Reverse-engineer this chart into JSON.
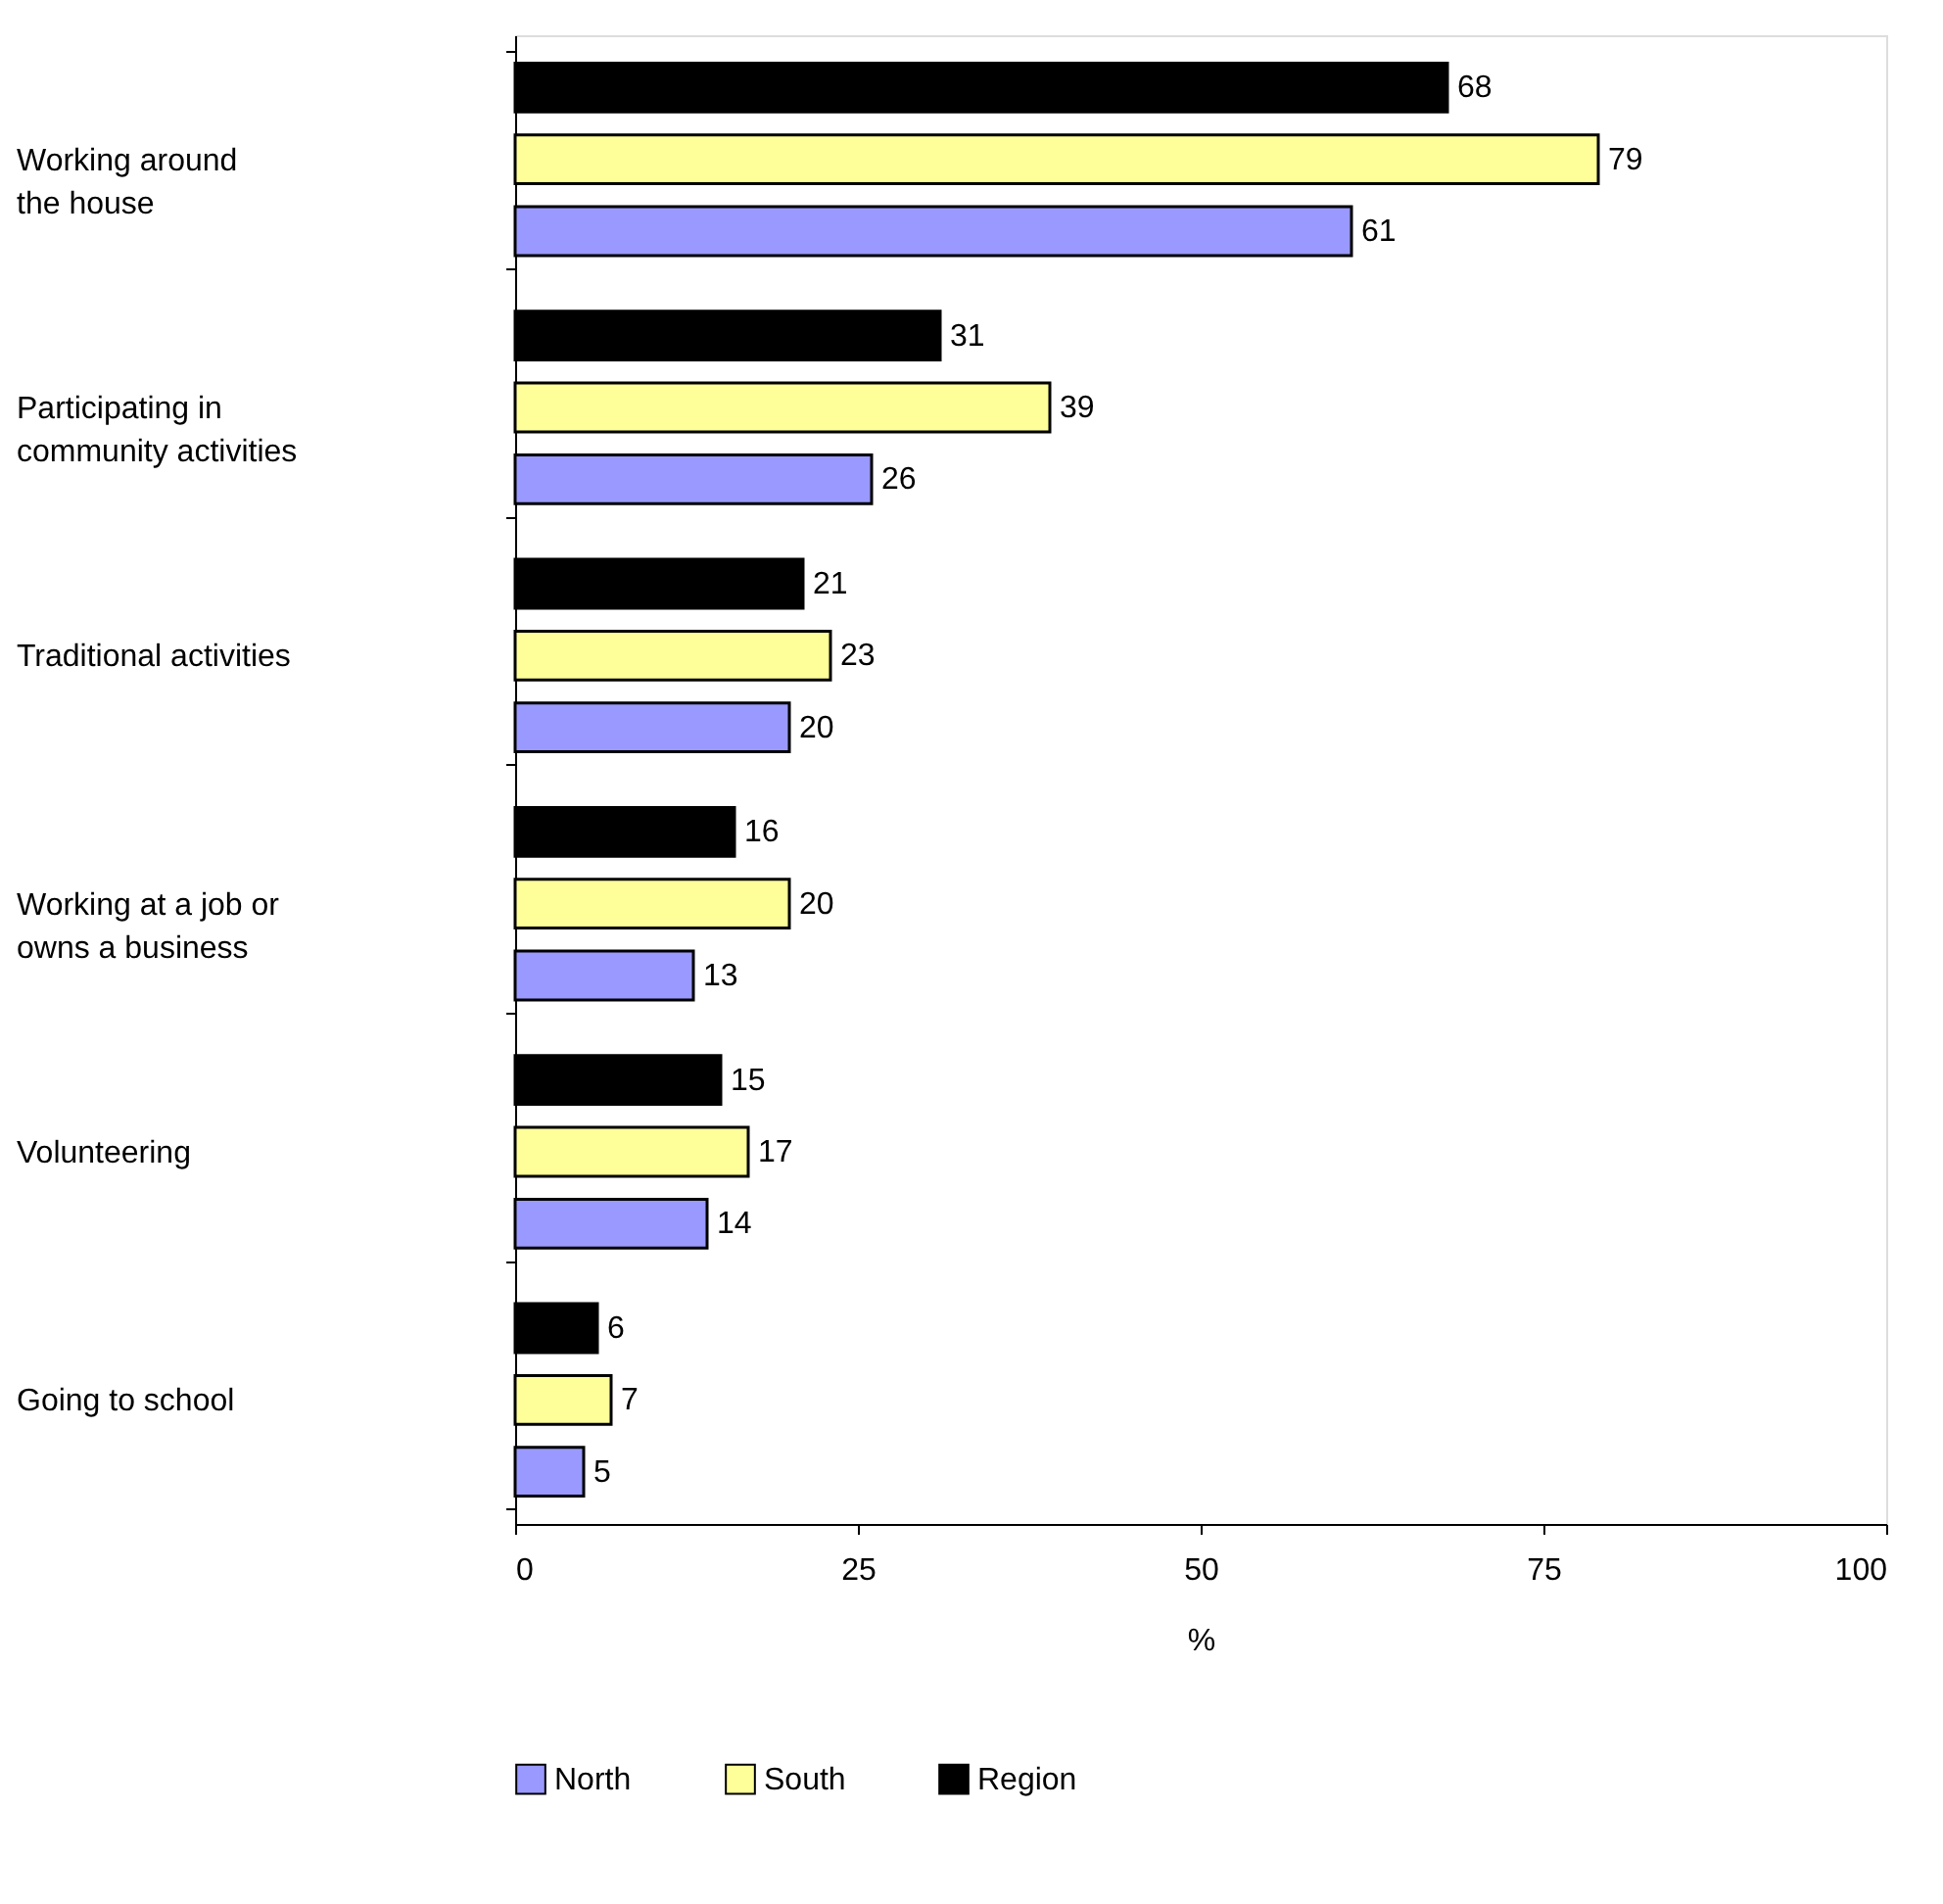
{
  "chart_data": {
    "type": "bar",
    "orientation": "horizontal",
    "categories": [
      "Working around\nthe house",
      "Participating in\ncommunity activities",
      "Traditional activities",
      "Working at a job or\nowns a business",
      "Volunteering",
      "Going to school"
    ],
    "series": [
      {
        "name": "North",
        "color": "#9999ff",
        "values": [
          61,
          26,
          20,
          13,
          14,
          5
        ]
      },
      {
        "name": "South",
        "color": "#ffff99",
        "values": [
          79,
          39,
          23,
          20,
          17,
          7
        ]
      },
      {
        "name": "Region",
        "color": "#000000",
        "values": [
          68,
          31,
          21,
          16,
          15,
          6
        ]
      }
    ],
    "xlabel": "%",
    "xlim": [
      0,
      100
    ],
    "xticks": [
      0,
      25,
      50,
      75,
      100
    ],
    "data_labels": true,
    "grid": false,
    "legend": "bottom"
  }
}
